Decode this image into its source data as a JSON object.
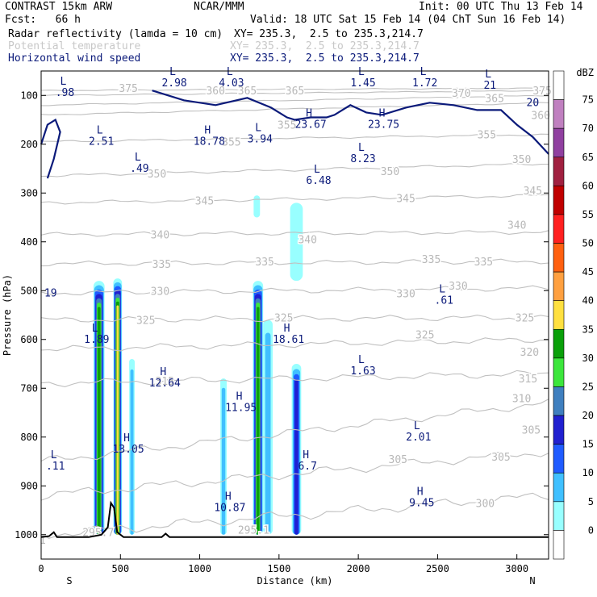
{
  "header": {
    "model": "CONTRAST 15km ARW",
    "org": "NCAR/MMM",
    "init": "Init: 00 UTC Thu 13 Feb 14",
    "fcst": "Fcst:   66 h",
    "valid": "Valid: 18 UTC Sat 15 Feb 14 (04 ChT Sun 16 Feb 14)",
    "field1": "Radar reflectivity (lamda = 10 cm)",
    "field1_xy": "XY= 235.3,  2.5 to 235.3,214.7",
    "field2": "Potential temperature",
    "field2_xy": "XY= 235.3,  2.5 to 235.3,214.7",
    "field3": "Horizontal wind speed",
    "field3_xy": "XY= 235.3,  2.5 to 235.3,214.7"
  },
  "colors": {
    "theta": "#c0c0c0",
    "wind": "#0b1a7a",
    "terrain": "#000000"
  },
  "chart_data": {
    "type": "heatmap",
    "xlabel": "Distance (km)",
    "ylabel": "Pressure (hPa)",
    "xlim": [
      0,
      3200
    ],
    "ylim": [
      1050,
      50
    ],
    "xticks": [
      0,
      500,
      1000,
      1500,
      2000,
      2500,
      3000
    ],
    "yticks": [
      100,
      200,
      300,
      400,
      500,
      600,
      700,
      800,
      900,
      1000
    ],
    "x_end_labels": {
      "left": "S",
      "right": "N"
    },
    "colorbar": {
      "unit": "dBZ",
      "levels": [
        0,
        5,
        10,
        15,
        20,
        25,
        30,
        35,
        40,
        45,
        50,
        55,
        60,
        65,
        70,
        75
      ],
      "colors": [
        "#ffffff",
        "#98ffff",
        "#40c0ff",
        "#1f5bff",
        "#2020d0",
        "#3f7fbf",
        "#3ce63c",
        "#0aa00a",
        "#ffe040",
        "#ffa040",
        "#ff6010",
        "#ff2020",
        "#c00000",
        "#a02040",
        "#9040a0",
        "#c080c0"
      ]
    },
    "reflectivity_cells": [
      {
        "x": [
          330,
          400
        ],
        "top": 480,
        "bottom": 1000,
        "max_dbz": 35
      },
      {
        "x": [
          455,
          510
        ],
        "top": 475,
        "bottom": 1000,
        "max_dbz": 40
      },
      {
        "x": [
          555,
          590
        ],
        "top": 640,
        "bottom": 1000,
        "max_dbz": 10
      },
      {
        "x": [
          1130,
          1170
        ],
        "top": 680,
        "bottom": 1000,
        "max_dbz": 10
      },
      {
        "x": [
          1335,
          1400
        ],
        "top": 480,
        "bottom": 1000,
        "max_dbz": 35
      },
      {
        "x": [
          1400,
          1460
        ],
        "top": 560,
        "bottom": 1000,
        "max_dbz": 10
      },
      {
        "x": [
          1580,
          1640
        ],
        "top": 650,
        "bottom": 1000,
        "max_dbz": 20
      },
      {
        "x": [
          1340,
          1380
        ],
        "top": 305,
        "bottom": 350,
        "max_dbz": 5
      },
      {
        "x": [
          1570,
          1650
        ],
        "top": 320,
        "bottom": 480,
        "max_dbz": 5
      }
    ],
    "theta_contours": [
      {
        "label": "300",
        "p_left": 1000,
        "p_right": 920
      },
      {
        "label": "305",
        "p_left": 920,
        "p_right": 830
      },
      {
        "label": "310",
        "p_left": 850,
        "p_right": 730
      },
      {
        "label": "315",
        "p_left": 690,
        "p_right": 670
      },
      {
        "label": "320",
        "p_left": 620,
        "p_right": 600
      },
      {
        "label": "325",
        "p_left": 560,
        "p_right": 555
      },
      {
        "label": "330",
        "p_left": 505,
        "p_right": 495
      },
      {
        "label": "335",
        "p_left": 445,
        "p_right": 440
      },
      {
        "label": "340",
        "p_left": 385,
        "p_right": 380
      },
      {
        "label": "345",
        "p_left": 320,
        "p_right": 305
      },
      {
        "label": "350",
        "p_left": 265,
        "p_right": 240
      },
      {
        "label": "355",
        "p_left": 195,
        "p_right": 180
      },
      {
        "label": "360",
        "p_left": 140,
        "p_right": 115
      },
      {
        "label": "365",
        "p_left": 120,
        "p_right": 100
      },
      {
        "label": "370",
        "p_left": 100,
        "p_right": 90
      },
      {
        "label": "375",
        "p_left": 90,
        "p_right": 85
      }
    ],
    "theta_labels": [
      {
        "text": "375",
        "x": 550,
        "p": 85
      },
      {
        "text": "360",
        "x": 1100,
        "p": 90
      },
      {
        "text": "365",
        "x": 1300,
        "p": 90
      },
      {
        "text": "365",
        "x": 1600,
        "p": 90
      },
      {
        "text": "370",
        "x": 2650,
        "p": 95
      },
      {
        "text": "365",
        "x": 2860,
        "p": 105
      },
      {
        "text": "375",
        "x": 3160,
        "p": 90
      },
      {
        "text": "360",
        "x": 3150,
        "p": 140
      },
      {
        "text": "355",
        "x": 1200,
        "p": 195
      },
      {
        "text": "355",
        "x": 1550,
        "p": 160
      },
      {
        "text": "355",
        "x": 2810,
        "p": 180
      },
      {
        "text": "350",
        "x": 730,
        "p": 260
      },
      {
        "text": "350",
        "x": 2200,
        "p": 255
      },
      {
        "text": "350",
        "x": 3030,
        "p": 230
      },
      {
        "text": "345",
        "x": 1030,
        "p": 315
      },
      {
        "text": "345",
        "x": 2300,
        "p": 310
      },
      {
        "text": "345",
        "x": 3100,
        "p": 295
      },
      {
        "text": "340",
        "x": 750,
        "p": 385
      },
      {
        "text": "340",
        "x": 1680,
        "p": 395
      },
      {
        "text": "340",
        "x": 3000,
        "p": 365
      },
      {
        "text": "335",
        "x": 760,
        "p": 445
      },
      {
        "text": "335",
        "x": 1410,
        "p": 440
      },
      {
        "text": "335",
        "x": 2460,
        "p": 435
      },
      {
        "text": "335",
        "x": 2790,
        "p": 440
      },
      {
        "text": "330",
        "x": 750,
        "p": 500
      },
      {
        "text": "330",
        "x": 2300,
        "p": 505
      },
      {
        "text": "330",
        "x": 2630,
        "p": 490
      },
      {
        "text": "325",
        "x": 660,
        "p": 560
      },
      {
        "text": "325",
        "x": 1530,
        "p": 555
      },
      {
        "text": "325",
        "x": 2420,
        "p": 590
      },
      {
        "text": "325",
        "x": 3050,
        "p": 555
      },
      {
        "text": "320",
        "x": 3080,
        "p": 625
      },
      {
        "text": "315",
        "x": 780,
        "p": 685
      },
      {
        "text": "315",
        "x": 3070,
        "p": 680
      },
      {
        "text": "310",
        "x": 3030,
        "p": 720
      },
      {
        "text": "305",
        "x": 3090,
        "p": 785
      },
      {
        "text": "305",
        "x": 2900,
        "p": 840
      },
      {
        "text": "305",
        "x": 2250,
        "p": 845
      },
      {
        "text": "300",
        "x": 2800,
        "p": 935
      },
      {
        "text": "295.7",
        "x": 360,
        "p": 995
      },
      {
        "text": "295.1",
        "x": 1340,
        "p": 990
      },
      {
        "text": "1",
        "x": 10,
        "p": 1010
      }
    ],
    "wind_extrema": [
      {
        "type": "L",
        "value": ".98",
        "x": 150,
        "p": 95
      },
      {
        "type": "L",
        "value": "2.98",
        "x": 840,
        "p": 75
      },
      {
        "type": "L",
        "value": "4.03",
        "x": 1200,
        "p": 75
      },
      {
        "type": "L",
        "value": "1.45",
        "x": 2030,
        "p": 75
      },
      {
        "type": "L",
        "value": "1.72",
        "x": 2420,
        "p": 75
      },
      {
        "type": "L",
        "value": "21",
        "x": 2830,
        "p": 80
      },
      {
        "type": "H",
        "value": "23.67",
        "x": 1700,
        "p": 160
      },
      {
        "type": "H",
        "value": "23.75",
        "x": 2160,
        "p": 160
      },
      {
        "type": "L",
        "value": "3.94",
        "x": 1380,
        "p": 190
      },
      {
        "type": "H",
        "value": "18.78",
        "x": 1060,
        "p": 195
      },
      {
        "type": "L",
        "value": "2.51",
        "x": 380,
        "p": 195
      },
      {
        "type": "L",
        "value": ".49",
        "x": 620,
        "p": 250
      },
      {
        "type": "L",
        "value": "8.23",
        "x": 2030,
        "p": 230
      },
      {
        "type": "L",
        "value": "6.48",
        "x": 1750,
        "p": 275
      },
      {
        "type": "L",
        "value": ".61",
        "x": 2540,
        "p": 520
      },
      {
        "type": "L",
        "value": "1.89",
        "x": 350,
        "p": 600
      },
      {
        "type": "H",
        "value": "18.61",
        "x": 1560,
        "p": 600
      },
      {
        "type": "L",
        "value": "1.63",
        "x": 2030,
        "p": 665
      },
      {
        "type": "H",
        "value": "12.64",
        "x": 780,
        "p": 690
      },
      {
        "type": "H",
        "value": "11.95",
        "x": 1260,
        "p": 740
      },
      {
        "type": "L",
        "value": "2.01",
        "x": 2380,
        "p": 800
      },
      {
        "type": "H",
        "value": "13.05",
        "x": 550,
        "p": 825
      },
      {
        "type": "H",
        "value": "6.7",
        "x": 1680,
        "p": 860
      },
      {
        "type": "L",
        "value": ".11",
        "x": 90,
        "p": 860
      },
      {
        "type": "H",
        "value": "10.87",
        "x": 1190,
        "p": 945
      },
      {
        "type": "H",
        "value": "9.45",
        "x": 2400,
        "p": 935
      },
      {
        "type": "",
        "value": "19",
        "x": 60,
        "p": 505
      },
      {
        "type": "",
        "value": "20",
        "x": 3100,
        "p": 115
      }
    ],
    "wind_contour_20": [
      {
        "x": 0,
        "p": 200
      },
      {
        "x": 40,
        "p": 160
      },
      {
        "x": 90,
        "p": 150
      },
      {
        "x": 120,
        "p": 175
      },
      {
        "x": 80,
        "p": 230
      },
      {
        "x": 40,
        "p": 270
      }
    ],
    "wind_contour_20_top": [
      {
        "x": 700,
        "p": 90
      },
      {
        "x": 900,
        "p": 110
      },
      {
        "x": 1100,
        "p": 120
      },
      {
        "x": 1300,
        "p": 105
      },
      {
        "x": 1450,
        "p": 125
      },
      {
        "x": 1550,
        "p": 145
      },
      {
        "x": 1600,
        "p": 150
      },
      {
        "x": 1700,
        "p": 145
      },
      {
        "x": 1800,
        "p": 145
      },
      {
        "x": 1850,
        "p": 140
      },
      {
        "x": 1950,
        "p": 120
      },
      {
        "x": 2050,
        "p": 135
      },
      {
        "x": 2150,
        "p": 140
      },
      {
        "x": 2300,
        "p": 125
      },
      {
        "x": 2450,
        "p": 115
      },
      {
        "x": 2600,
        "p": 120
      },
      {
        "x": 2750,
        "p": 130
      },
      {
        "x": 2900,
        "p": 130
      },
      {
        "x": 3000,
        "p": 160
      },
      {
        "x": 3100,
        "p": 185
      },
      {
        "x": 3200,
        "p": 220
      }
    ],
    "terrain": [
      {
        "x": 0,
        "p": 1005
      },
      {
        "x": 50,
        "p": 1003
      },
      {
        "x": 80,
        "p": 995
      },
      {
        "x": 100,
        "p": 1005
      },
      {
        "x": 300,
        "p": 1005
      },
      {
        "x": 380,
        "p": 1000
      },
      {
        "x": 420,
        "p": 985
      },
      {
        "x": 440,
        "p": 935
      },
      {
        "x": 460,
        "p": 945
      },
      {
        "x": 480,
        "p": 995
      },
      {
        "x": 520,
        "p": 1005
      },
      {
        "x": 760,
        "p": 1005
      },
      {
        "x": 785,
        "p": 998
      },
      {
        "x": 810,
        "p": 1005
      },
      {
        "x": 3200,
        "p": 1005
      }
    ]
  }
}
